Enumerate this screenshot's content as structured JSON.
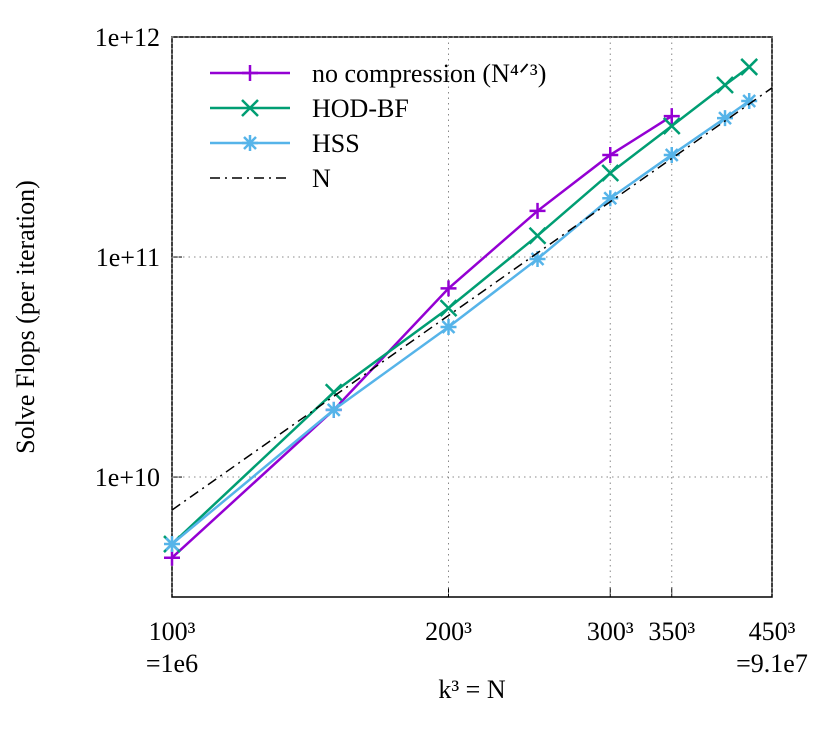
{
  "chart_data": {
    "type": "line",
    "log_x": true,
    "log_y": true,
    "grid": true,
    "ylabel": "Solve Flops (per iteration)",
    "xlabel": "k³ = N",
    "xlim": [
      1000000,
      91125000
    ],
    "ylim": [
      2850000000,
      1000000000000
    ],
    "xticks": [
      {
        "value": 1000000,
        "label": "100³"
      },
      {
        "value": 8000000,
        "label": "200³"
      },
      {
        "value": 27000000,
        "label": "300³"
      },
      {
        "value": 42875000,
        "label": "350³"
      },
      {
        "value": 91125000,
        "label": "450³"
      }
    ],
    "yticks": [
      {
        "value": 10000000000,
        "label": "1e+10"
      },
      {
        "value": 100000000000,
        "label": "1e+11"
      },
      {
        "value": 1000000000000,
        "label": "1e+12"
      }
    ],
    "annotations": [
      "=1e6",
      "=9.1e7"
    ],
    "legend": "top-left",
    "series": [
      {
        "name": "no compression (N⁴ᐟ³)",
        "color": "#9400d3",
        "marker": "plus",
        "x": [
          1000000,
          3375000,
          8000000,
          15625000,
          27000000,
          42875000
        ],
        "values": [
          4300000000,
          20200000000,
          72000000000,
          162000000000,
          291000000000,
          437000000000
        ]
      },
      {
        "name": "HOD-BF",
        "color": "#009e73",
        "marker": "cross",
        "x": [
          1000000,
          3375000,
          8000000,
          15625000,
          27000000,
          42875000,
          64000000,
          76765625
        ],
        "values": [
          4960000000,
          24300000000,
          58600000000,
          125000000000,
          241000000000,
          394000000000,
          605000000000,
          731000000000
        ]
      },
      {
        "name": "HSS",
        "color": "#56b4e9",
        "marker": "star",
        "x": [
          1000000,
          3375000,
          8000000,
          15625000,
          27000000,
          42875000,
          64000000,
          76765625
        ],
        "values": [
          4960000000,
          20200000000,
          48100000000,
          98000000000,
          185000000000,
          291000000000,
          428000000000,
          512000000000
        ]
      },
      {
        "name": "N",
        "color": "#000000",
        "marker": "none",
        "dash": "dashdot",
        "x": [
          1000000,
          91125000
        ],
        "values": [
          7080000000,
          587000000000
        ]
      }
    ]
  }
}
